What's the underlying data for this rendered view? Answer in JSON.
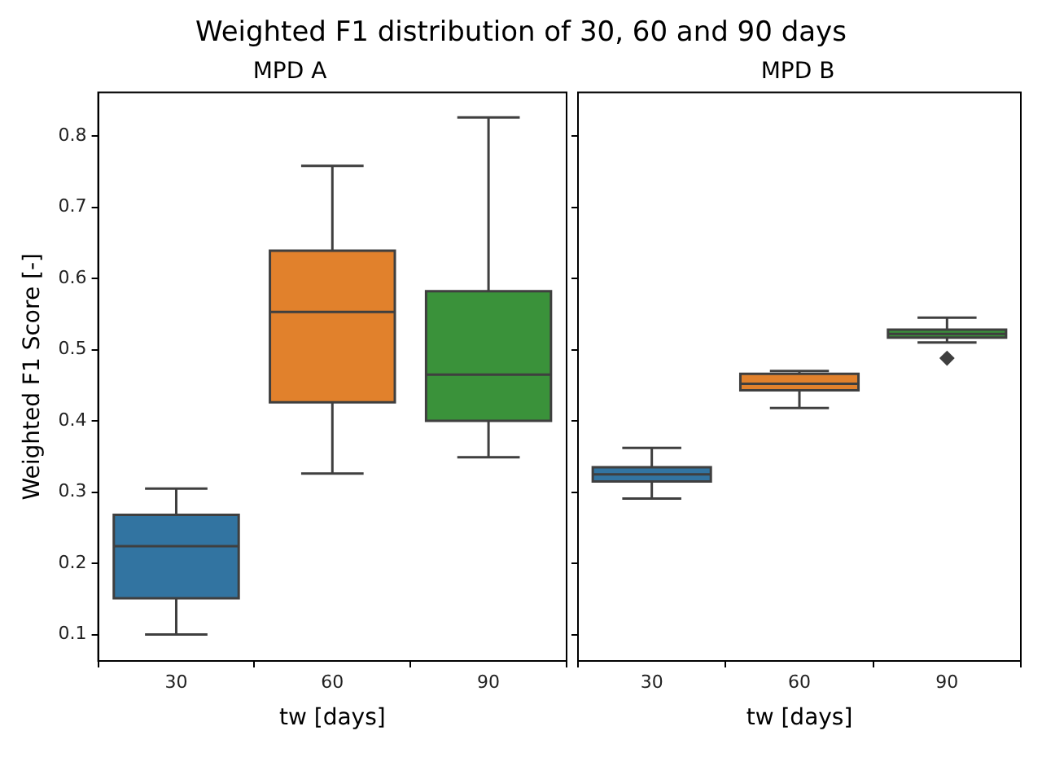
{
  "chart_data": [
    {
      "type": "box",
      "title": "Weighted F1 distribution of 30, 60 and 90 days",
      "subtitle": "MPD A",
      "xlabel": "tw [days]",
      "ylabel": "Weighted F1 Score [-]",
      "categories": [
        "30",
        "60",
        "90"
      ],
      "colors": [
        "#3274a1",
        "#e1812c",
        "#3a923a"
      ],
      "boxes": [
        {
          "low": 0.1,
          "q1": 0.151,
          "median": 0.224,
          "q3": 0.268,
          "high": 0.305
        },
        {
          "low": 0.326,
          "q1": 0.426,
          "median": 0.553,
          "q3": 0.639,
          "high": 0.758
        },
        {
          "low": 0.349,
          "q1": 0.4,
          "median": 0.465,
          "q3": 0.582,
          "high": 0.826
        }
      ],
      "ylim": [
        0.063,
        0.861
      ],
      "yticks": [
        0.1,
        0.2,
        0.3,
        0.4,
        0.5,
        0.6,
        0.7,
        0.8
      ],
      "grid": false
    },
    {
      "type": "box",
      "title": "MPD B",
      "xlabel": "tw [days]",
      "categories": [
        "30",
        "60",
        "90"
      ],
      "colors": [
        "#3274a1",
        "#e1812c",
        "#3a923a"
      ],
      "boxes": [
        {
          "low": 0.291,
          "q1": 0.315,
          "median": 0.325,
          "q3": 0.335,
          "high": 0.362
        },
        {
          "low": 0.418,
          "q1": 0.443,
          "median": 0.452,
          "q3": 0.466,
          "high": 0.47
        },
        {
          "low": 0.51,
          "q1": 0.517,
          "median": 0.522,
          "q3": 0.528,
          "high": 0.545,
          "outliers": [
            0.488
          ]
        }
      ],
      "ylim": [
        0.063,
        0.861
      ],
      "yticks": [
        0.1,
        0.2,
        0.3,
        0.4,
        0.5,
        0.6,
        0.7,
        0.8
      ],
      "grid": false,
      "tick_labels": "x"
    }
  ]
}
